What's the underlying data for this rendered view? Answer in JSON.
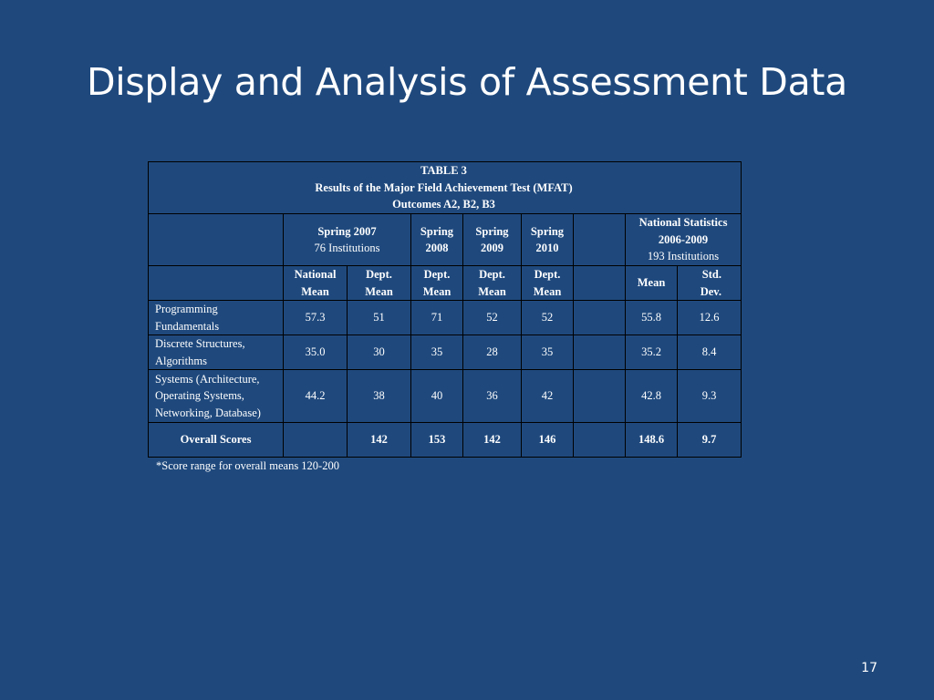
{
  "slide": {
    "title": "Display and Analysis of Assessment Data",
    "page_number": "17"
  },
  "table": {
    "caption_line1": "TABLE 3",
    "caption_line2": "Results of the Major Field Achievement Test (MFAT)",
    "caption_line3": "Outcomes A2, B2, B3",
    "headers": {
      "spring2007": "Spring 2007",
      "spring2007_sub": "76 Institutions",
      "spring2008_a": "Spring",
      "spring2008_b": "2008",
      "spring2009_a": "Spring",
      "spring2009_b": "2009",
      "spring2010_a": "Spring",
      "spring2010_b": "2010",
      "national_stats": "National Statistics",
      "national_years": "2006-2009",
      "national_sub": "193 Institutions"
    },
    "subheaders": {
      "national_mean_a": "National",
      "national_mean_b": "Mean",
      "dept_a": "Dept.",
      "dept_b": "Mean",
      "mean": "Mean",
      "std_a": "Std.",
      "std_b": "Dev."
    },
    "rows": [
      {
        "label_lines": [
          "Programming",
          "Fundamentals"
        ],
        "values": [
          "57.3",
          "51",
          "71",
          "52",
          "52",
          "",
          "55.8",
          "12.6"
        ]
      },
      {
        "label_lines": [
          "Discrete Structures,",
          "Algorithms"
        ],
        "values": [
          "35.0",
          "30",
          "35",
          "28",
          "35",
          "",
          "35.2",
          "8.4"
        ]
      },
      {
        "label_lines": [
          "Systems (Architecture,",
          "Operating Systems,",
          "Networking, Database)"
        ],
        "values": [
          "44.2",
          "38",
          "40",
          "36",
          "42",
          "",
          "42.8",
          "9.3"
        ]
      }
    ],
    "overall": {
      "label": "Overall Scores",
      "values": [
        "",
        "142",
        "153",
        "142",
        "146",
        "",
        "148.6",
        "9.7"
      ]
    }
  },
  "footnote": "*Score range for overall means 120-200"
}
